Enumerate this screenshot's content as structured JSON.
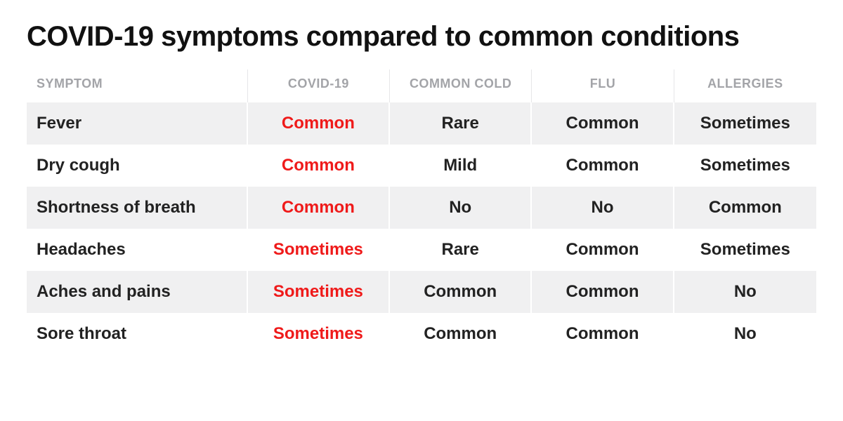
{
  "title": "COVID-19 symptoms compared to common conditions",
  "columns": [
    {
      "label": "SYMPTOM",
      "align": "left"
    },
    {
      "label": "COVID-19",
      "align": "center"
    },
    {
      "label": "COMMON COLD",
      "align": "center"
    },
    {
      "label": "FLU",
      "align": "center"
    },
    {
      "label": "ALLERGIES",
      "align": "center"
    }
  ],
  "highlight_column_index": 1,
  "highlight_color": "#ef1a1a",
  "row_stripe_color": "#f0f0f1",
  "background_color": "#ffffff",
  "header_text_color": "#a3a4a8",
  "body_text_color": "#222222",
  "rows": [
    {
      "symptom": "Fever",
      "covid": "Common",
      "cold": "Rare",
      "flu": "Common",
      "allergies": "Sometimes"
    },
    {
      "symptom": "Dry cough",
      "covid": "Common",
      "cold": "Mild",
      "flu": "Common",
      "allergies": "Sometimes"
    },
    {
      "symptom": "Shortness of breath",
      "covid": "Common",
      "cold": "No",
      "flu": "No",
      "allergies": "Common"
    },
    {
      "symptom": "Headaches",
      "covid": "Sometimes",
      "cold": "Rare",
      "flu": "Common",
      "allergies": "Sometimes"
    },
    {
      "symptom": "Aches and pains",
      "covid": "Sometimes",
      "cold": "Common",
      "flu": "Common",
      "allergies": "No"
    },
    {
      "symptom": "Sore throat",
      "covid": "Sometimes",
      "cold": "Common",
      "flu": "Common",
      "allergies": "No"
    }
  ]
}
